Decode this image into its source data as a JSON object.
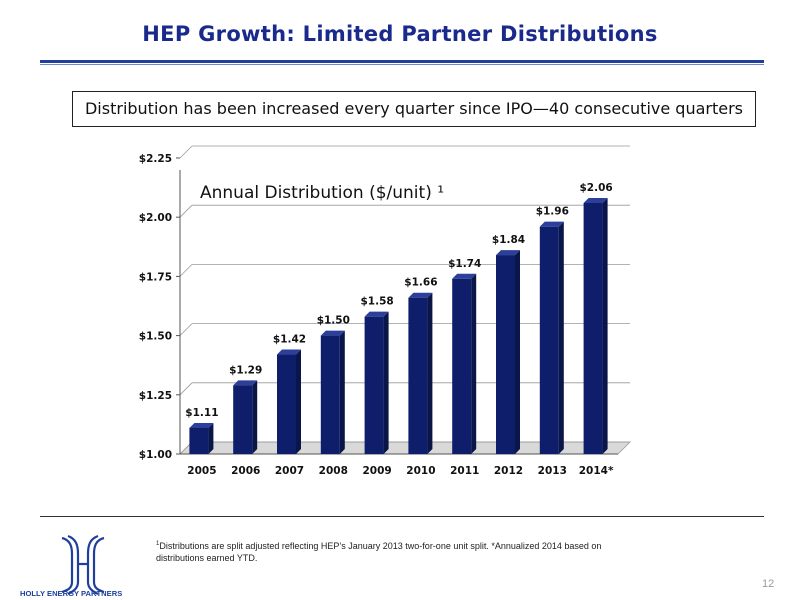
{
  "page": {
    "title": "HEP Growth: Limited Partner Distributions",
    "callout": "Distribution has been increased every quarter since IPO—40 consecutive quarters",
    "footnote_marker": "1",
    "footnote": "Distributions are split adjusted reflecting HEP’s January 2013 two-for-one unit split.  *Annualized 2014 based on distributions earned YTD.",
    "logo_text": "HOLLY ENERGY PARTNERS",
    "page_number": "12"
  },
  "chart_data": {
    "type": "bar",
    "title": "Annual Distribution ($/unit) ¹",
    "categories": [
      "2005",
      "2006",
      "2007",
      "2008",
      "2009",
      "2010",
      "2011",
      "2012",
      "2013",
      "2014*"
    ],
    "values": [
      1.11,
      1.29,
      1.42,
      1.5,
      1.58,
      1.66,
      1.74,
      1.84,
      1.96,
      2.06
    ],
    "data_labels": [
      "$1.11",
      "$1.29",
      "$1.42",
      "$1.50",
      "$1.58",
      "$1.66",
      "$1.74",
      "$1.84",
      "$1.96",
      "$2.06"
    ],
    "ylim": [
      1.0,
      2.25
    ],
    "yticks": [
      1.0,
      1.25,
      1.5,
      1.75,
      2.0,
      2.25
    ],
    "ytick_labels": [
      "$1.00",
      "$1.25",
      "$1.50",
      "$1.75",
      "$2.00",
      "$2.25"
    ],
    "xlabel": "",
    "ylabel": "",
    "grid": true,
    "bar_color": "#0f1e6b",
    "bar_side_color": "#0a1548",
    "bar_top_color": "#2c3f9a"
  },
  "colors": {
    "title": "#1a2a8c",
    "rule": "#1e3f9c"
  }
}
